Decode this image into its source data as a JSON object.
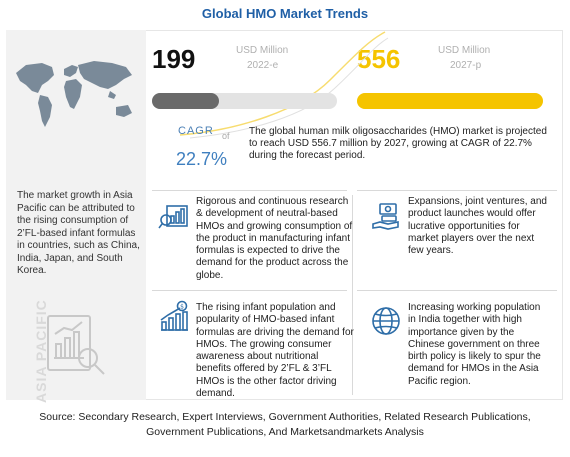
{
  "title": "Global HMO Market Trends",
  "market": {
    "value_2022": "199",
    "unit_2022": "USD Million",
    "year_2022": "2022-e",
    "value_2027": "556",
    "unit_2027": "USD Million",
    "year_2027": "2027-p",
    "bar_fill_2022": 0.36,
    "bar_fill_2027": 1.0
  },
  "cagr": {
    "label": "CAGR",
    "of": "of",
    "value": "22.7%"
  },
  "summary": "The global human milk oligosaccharides (HMO) market is projected to reach USD 556.7 million by 2027, growing at CAGR of 22.7% during the forecast period.",
  "left_panel": {
    "text": "The market growth in Asia Pacific can be attributed to the rising consumption of 2’FL-based infant formulas in countries, such as China, India, Japan, and South Korea.",
    "region_label": "ASIA PACIFIC"
  },
  "facts": [
    {
      "icon": "research-chart-icon",
      "text": "Rigorous and continuous research & development of neutral-based HMOs and growing consumption of the product in manufacturing infant formulas is expected to drive the demand for the product across the globe."
    },
    {
      "icon": "money-hand-icon",
      "text": "Expansions, joint ventures, and product launches would offer lucrative opportunities for market players over the next few years."
    },
    {
      "icon": "growth-bars-icon",
      "text": "The rising infant population and popularity of HMO-based infant formulas are driving the demand for HMOs. The growing consumer awareness about nutritional benefits offered by 2’FL & 3’FL HMOs is the other factor driving demand."
    },
    {
      "icon": "globe-icon",
      "text": "Increasing working population in India together with high importance given by the Chinese government on three birth policy is likely to spur the demand for HMOs in the Asia Pacific region."
    }
  ],
  "source_line1": "Source: Secondary Research, Expert Interviews, Government Authorities, Related Research Publications,",
  "source_line2": "Government Publications, And Marketsandmarkets Analysis",
  "colors": {
    "title": "#1f5fa6",
    "accent_yellow": "#f5c400",
    "bar_dark": "#6a6a6a",
    "cagr_blue": "#3f7fbf"
  }
}
